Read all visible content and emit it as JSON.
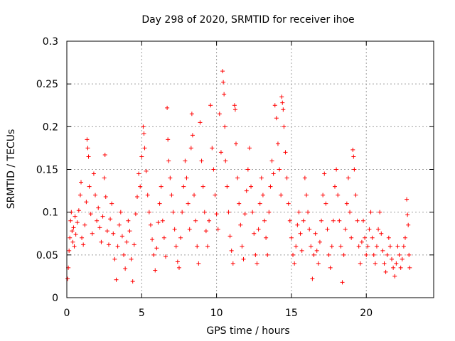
{
  "chart_data": {
    "type": "scatter",
    "title": "Day 298 of 2020, SRMTID for receiver ihoe",
    "xlabel": "GPS time / hours",
    "ylabel": "SRMTID / TECUs",
    "xlim": [
      0,
      24.5
    ],
    "ylim": [
      0,
      0.3
    ],
    "xticks": [
      0,
      5,
      10,
      15,
      20
    ],
    "xtick_labels": [
      "0",
      "5",
      "10",
      "15",
      "20"
    ],
    "yticks": [
      0,
      0.05,
      0.1,
      0.15,
      0.2,
      0.25,
      0.3
    ],
    "ytick_labels": [
      "0",
      "0.05",
      "0.1",
      "0.15",
      "0.2",
      "0.25",
      "0.3"
    ],
    "grid": true,
    "marker": "+",
    "color": "#ff0000",
    "series": [
      {
        "name": "SRMTID",
        "points": [
          [
            0.05,
            0.022
          ],
          [
            0.1,
            0.035
          ],
          [
            0.15,
            0.055
          ],
          [
            0.2,
            0.07
          ],
          [
            0.25,
            0.09
          ],
          [
            0.3,
            0.1
          ],
          [
            0.35,
            0.078
          ],
          [
            0.4,
            0.065
          ],
          [
            0.45,
            0.082
          ],
          [
            0.5,
            0.06
          ],
          [
            0.55,
            0.095
          ],
          [
            0.6,
            0.074
          ],
          [
            0.7,
            0.088
          ],
          [
            0.8,
            0.102
          ],
          [
            0.9,
            0.12
          ],
          [
            0.95,
            0.135
          ],
          [
            1.0,
            0.07
          ],
          [
            1.1,
            0.062
          ],
          [
            1.2,
            0.085
          ],
          [
            1.3,
            0.112
          ],
          [
            1.35,
            0.185
          ],
          [
            1.4,
            0.175
          ],
          [
            1.45,
            0.165
          ],
          [
            1.5,
            0.13
          ],
          [
            1.6,
            0.098
          ],
          [
            1.7,
            0.075
          ],
          [
            1.8,
            0.145
          ],
          [
            1.9,
            0.12
          ],
          [
            2.0,
            0.09
          ],
          [
            2.1,
            0.105
          ],
          [
            2.2,
            0.082
          ],
          [
            2.3,
            0.065
          ],
          [
            2.4,
            0.095
          ],
          [
            2.5,
            0.14
          ],
          [
            2.55,
            0.167
          ],
          [
            2.6,
            0.118
          ],
          [
            2.7,
            0.078
          ],
          [
            2.8,
            0.062
          ],
          [
            2.9,
            0.092
          ],
          [
            3.0,
            0.11
          ],
          [
            3.1,
            0.075
          ],
          [
            3.2,
            0.045
          ],
          [
            3.3,
            0.021
          ],
          [
            3.4,
            0.06
          ],
          [
            3.5,
            0.085
          ],
          [
            3.6,
            0.1
          ],
          [
            3.7,
            0.072
          ],
          [
            3.8,
            0.05
          ],
          [
            3.9,
            0.034
          ],
          [
            4.0,
            0.065
          ],
          [
            4.1,
            0.09
          ],
          [
            4.2,
            0.078
          ],
          [
            4.3,
            0.045
          ],
          [
            4.4,
            0.019
          ],
          [
            4.5,
            0.062
          ],
          [
            4.6,
            0.098
          ],
          [
            4.7,
            0.118
          ],
          [
            4.8,
            0.145
          ],
          [
            4.9,
            0.13
          ],
          [
            5.0,
            0.165
          ],
          [
            5.1,
            0.2
          ],
          [
            5.15,
            0.192
          ],
          [
            5.2,
            0.175
          ],
          [
            5.3,
            0.148
          ],
          [
            5.4,
            0.12
          ],
          [
            5.5,
            0.1
          ],
          [
            5.6,
            0.085
          ],
          [
            5.7,
            0.068
          ],
          [
            5.8,
            0.05
          ],
          [
            5.9,
            0.032
          ],
          [
            6.0,
            0.058
          ],
          [
            6.1,
            0.088
          ],
          [
            6.2,
            0.11
          ],
          [
            6.3,
            0.13
          ],
          [
            6.4,
            0.09
          ],
          [
            6.5,
            0.07
          ],
          [
            6.6,
            0.048
          ],
          [
            6.7,
            0.222
          ],
          [
            6.75,
            0.185
          ],
          [
            6.8,
            0.16
          ],
          [
            6.9,
            0.14
          ],
          [
            7.0,
            0.12
          ],
          [
            7.1,
            0.1
          ],
          [
            7.2,
            0.08
          ],
          [
            7.3,
            0.06
          ],
          [
            7.4,
            0.042
          ],
          [
            7.5,
            0.035
          ],
          [
            7.6,
            0.07
          ],
          [
            7.7,
            0.1
          ],
          [
            7.8,
            0.13
          ],
          [
            7.9,
            0.16
          ],
          [
            8.0,
            0.14
          ],
          [
            8.1,
            0.11
          ],
          [
            8.2,
            0.08
          ],
          [
            8.3,
            0.175
          ],
          [
            8.35,
            0.215
          ],
          [
            8.4,
            0.19
          ],
          [
            8.5,
            0.12
          ],
          [
            8.6,
            0.09
          ],
          [
            8.7,
            0.06
          ],
          [
            8.8,
            0.04
          ],
          [
            8.9,
            0.205
          ],
          [
            9.0,
            0.16
          ],
          [
            9.1,
            0.13
          ],
          [
            9.2,
            0.1
          ],
          [
            9.3,
            0.078
          ],
          [
            9.4,
            0.06
          ],
          [
            9.5,
            0.09
          ],
          [
            9.6,
            0.225
          ],
          [
            9.7,
            0.175
          ],
          [
            9.8,
            0.15
          ],
          [
            9.9,
            0.12
          ],
          [
            10.0,
            0.098
          ],
          [
            10.1,
            0.08
          ],
          [
            10.2,
            0.215
          ],
          [
            10.3,
            0.17
          ],
          [
            10.4,
            0.265
          ],
          [
            10.45,
            0.252
          ],
          [
            10.5,
            0.238
          ],
          [
            10.55,
            0.2
          ],
          [
            10.6,
            0.16
          ],
          [
            10.7,
            0.13
          ],
          [
            10.8,
            0.1
          ],
          [
            10.9,
            0.072
          ],
          [
            11.0,
            0.055
          ],
          [
            11.1,
            0.04
          ],
          [
            11.2,
            0.225
          ],
          [
            11.25,
            0.22
          ],
          [
            11.3,
            0.18
          ],
          [
            11.4,
            0.14
          ],
          [
            11.5,
            0.11
          ],
          [
            11.6,
            0.085
          ],
          [
            11.7,
            0.06
          ],
          [
            11.8,
            0.045
          ],
          [
            11.9,
            0.098
          ],
          [
            12.0,
            0.125
          ],
          [
            12.1,
            0.15
          ],
          [
            12.2,
            0.175
          ],
          [
            12.3,
            0.13
          ],
          [
            12.4,
            0.1
          ],
          [
            12.5,
            0.075
          ],
          [
            12.6,
            0.05
          ],
          [
            12.7,
            0.04
          ],
          [
            12.8,
            0.08
          ],
          [
            12.9,
            0.11
          ],
          [
            13.0,
            0.14
          ],
          [
            13.1,
            0.12
          ],
          [
            13.2,
            0.09
          ],
          [
            13.3,
            0.07
          ],
          [
            13.4,
            0.05
          ],
          [
            13.5,
            0.1
          ],
          [
            13.6,
            0.13
          ],
          [
            13.7,
            0.16
          ],
          [
            13.8,
            0.145
          ],
          [
            13.9,
            0.225
          ],
          [
            14.0,
            0.21
          ],
          [
            14.1,
            0.18
          ],
          [
            14.2,
            0.15
          ],
          [
            14.3,
            0.12
          ],
          [
            14.35,
            0.235
          ],
          [
            14.4,
            0.228
          ],
          [
            14.45,
            0.22
          ],
          [
            14.5,
            0.2
          ],
          [
            14.6,
            0.17
          ],
          [
            14.7,
            0.14
          ],
          [
            14.8,
            0.11
          ],
          [
            14.9,
            0.09
          ],
          [
            15.0,
            0.07
          ],
          [
            15.1,
            0.05
          ],
          [
            15.2,
            0.04
          ],
          [
            15.3,
            0.06
          ],
          [
            15.4,
            0.085
          ],
          [
            15.5,
            0.1
          ],
          [
            15.6,
            0.075
          ],
          [
            15.7,
            0.055
          ],
          [
            15.8,
            0.09
          ],
          [
            15.9,
            0.14
          ],
          [
            16.0,
            0.12
          ],
          [
            16.1,
            0.1
          ],
          [
            16.2,
            0.08
          ],
          [
            16.3,
            0.06
          ],
          [
            16.4,
            0.022
          ],
          [
            16.5,
            0.05
          ],
          [
            16.6,
            0.075
          ],
          [
            16.7,
            0.055
          ],
          [
            16.8,
            0.04
          ],
          [
            16.9,
            0.065
          ],
          [
            17.0,
            0.09
          ],
          [
            17.1,
            0.12
          ],
          [
            17.2,
            0.145
          ],
          [
            17.3,
            0.11
          ],
          [
            17.4,
            0.08
          ],
          [
            17.5,
            0.05
          ],
          [
            17.6,
            0.035
          ],
          [
            17.7,
            0.06
          ],
          [
            17.8,
            0.09
          ],
          [
            17.9,
            0.13
          ],
          [
            18.0,
            0.15
          ],
          [
            18.1,
            0.12
          ],
          [
            18.2,
            0.09
          ],
          [
            18.3,
            0.06
          ],
          [
            18.4,
            0.018
          ],
          [
            18.5,
            0.05
          ],
          [
            18.6,
            0.08
          ],
          [
            18.7,
            0.11
          ],
          [
            18.8,
            0.14
          ],
          [
            18.9,
            0.1
          ],
          [
            19.0,
            0.07
          ],
          [
            19.1,
            0.173
          ],
          [
            19.15,
            0.165
          ],
          [
            19.2,
            0.15
          ],
          [
            19.3,
            0.12
          ],
          [
            19.4,
            0.09
          ],
          [
            19.5,
            0.06
          ],
          [
            19.6,
            0.04
          ],
          [
            19.7,
            0.065
          ],
          [
            19.8,
            0.09
          ],
          [
            19.9,
            0.07
          ],
          [
            20.0,
            0.05
          ],
          [
            20.1,
            0.06
          ],
          [
            20.2,
            0.08
          ],
          [
            20.3,
            0.1
          ],
          [
            20.4,
            0.07
          ],
          [
            20.5,
            0.05
          ],
          [
            20.6,
            0.04
          ],
          [
            20.7,
            0.06
          ],
          [
            20.8,
            0.08
          ],
          [
            20.9,
            0.1
          ],
          [
            21.0,
            0.075
          ],
          [
            21.1,
            0.055
          ],
          [
            21.2,
            0.04
          ],
          [
            21.3,
            0.03
          ],
          [
            21.4,
            0.05
          ],
          [
            21.5,
            0.07
          ],
          [
            21.6,
            0.06
          ],
          [
            21.7,
            0.045
          ],
          [
            21.8,
            0.035
          ],
          [
            21.9,
            0.025
          ],
          [
            22.0,
            0.04
          ],
          [
            22.1,
            0.06
          ],
          [
            22.2,
            0.05
          ],
          [
            22.3,
            0.035
          ],
          [
            22.4,
            0.045
          ],
          [
            22.5,
            0.06
          ],
          [
            22.6,
            0.07
          ],
          [
            22.7,
            0.115
          ],
          [
            22.75,
            0.097
          ],
          [
            22.8,
            0.085
          ],
          [
            22.85,
            0.05
          ],
          [
            22.9,
            0.035
          ]
        ]
      }
    ]
  }
}
